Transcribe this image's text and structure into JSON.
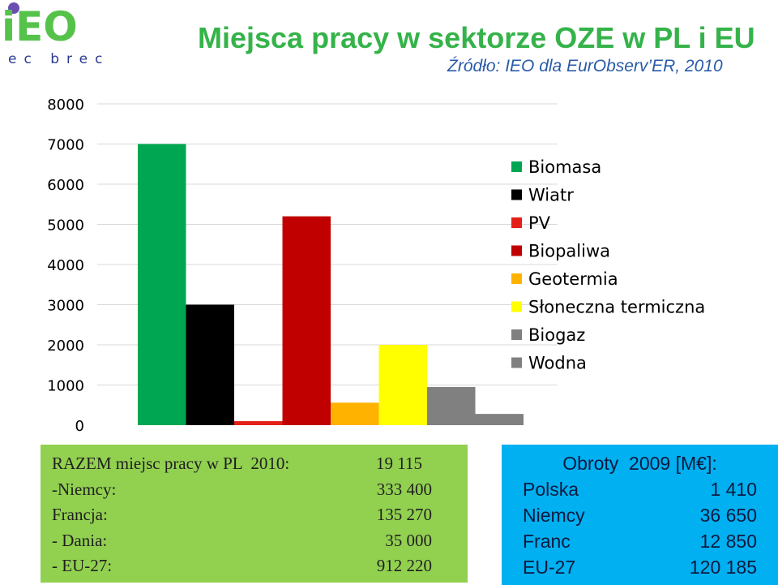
{
  "logo": {
    "letters": "iEO",
    "tagline": "ec brec"
  },
  "header": {
    "title": "Miejsca pracy w sektorze OZE w PL i EU",
    "subtitle": "Źródło: IEO dla EurObserv’ER, 2010"
  },
  "colors": {
    "Biomasa": "#00a651",
    "Wiatr": "#000000",
    "PV": "#e32119",
    "Biopaliwa": "#c00000",
    "Geotermia": "#ffb300",
    "Sloneczna termiczna": "#ffff00",
    "Biogaz": "#808080",
    "Wodna": "#808080"
  },
  "chart_data": {
    "type": "bar",
    "title": "Miejsca pracy w sektorze OZE w PL i EU",
    "categories": [
      "Biomasa",
      "Wiatr",
      "PV",
      "Biopaliwa",
      "Geotermia",
      "Słoneczna termiczna",
      "Biogaz",
      "Wodna"
    ],
    "values": [
      7000,
      3000,
      100,
      5200,
      560,
      2000,
      950,
      280
    ],
    "ylim": [
      0,
      8000
    ],
    "yticks": [
      "0",
      "1000",
      "2000",
      "3000",
      "4000",
      "5000",
      "6000",
      "7000",
      "8000"
    ],
    "xlabel": "",
    "ylabel": "",
    "legend": {
      "position": "right",
      "entries": [
        "Biomasa",
        "Wiatr",
        "PV",
        "Biopaliwa",
        "Geotermia",
        "Słoneczna termiczna",
        "Biogaz",
        "Wodna"
      ]
    },
    "grid": false
  },
  "summary": {
    "rows": [
      {
        "label": "RAZEM miejsc pracy w PL  2010:",
        "value": "19 115"
      },
      {
        "label": "-Niemcy:",
        "value": "333 400"
      },
      {
        "label": "Francja:",
        "value": "135 270"
      },
      {
        "label": "- Dania:",
        "value": "35 000"
      },
      {
        "label": "- EU-27:",
        "value": "912 220"
      }
    ]
  },
  "turnover": {
    "header": "Obroty  2009 [M€]:",
    "rows": [
      {
        "label": "Polska",
        "value": "1 410"
      },
      {
        "label": "Niemcy",
        "value": "36 650"
      },
      {
        "label": "Franc",
        "value": "12 850"
      },
      {
        "label": "EU-27",
        "value": "120 185"
      }
    ]
  }
}
